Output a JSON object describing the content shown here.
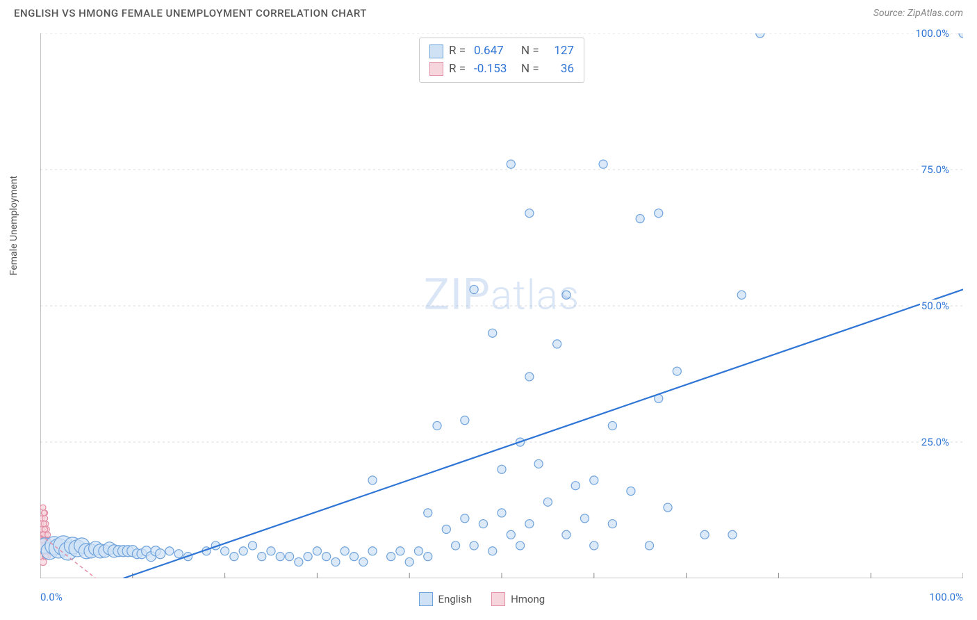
{
  "title": "ENGLISH VS HMONG FEMALE UNEMPLOYMENT CORRELATION CHART",
  "source": "Source: ZipAtlas.com",
  "ylabel": "Female Unemployment",
  "watermark_a": "ZIP",
  "watermark_b": "atlas",
  "chart": {
    "type": "scatter",
    "xlim": [
      0,
      100
    ],
    "ylim": [
      0,
      100
    ],
    "x_ticks": [
      0,
      10,
      20,
      30,
      40,
      50,
      60,
      70,
      80,
      90,
      100
    ],
    "y_ticks": [
      25,
      50,
      75,
      100
    ],
    "x_tick_labels": {
      "0": "0.0%",
      "100": "100.0%"
    },
    "y_tick_labels": {
      "25": "25.0%",
      "50": "50.0%",
      "75": "75.0%",
      "100": "100.0%"
    },
    "background_color": "#ffffff",
    "grid_color": "#d9d9d9",
    "grid_dash": "3,4",
    "axis_color": "#888888",
    "series": [
      {
        "name": "English",
        "marker_fill": "#cfe1f5",
        "marker_stroke": "#6fa3db",
        "marker_stroke_width": 1.2,
        "marker_base_r": 6,
        "trend_color": "#2e75d6",
        "trend_width": 2.2,
        "trend": {
          "x1": 9,
          "y1": 0,
          "x2": 100,
          "y2": 53
        },
        "stats": {
          "R": "0.647",
          "N": "127"
        },
        "points": [
          {
            "x": 0.5,
            "y": 6,
            "r": 11
          },
          {
            "x": 1,
            "y": 5,
            "r": 12
          },
          {
            "x": 1.5,
            "y": 6,
            "r": 13
          },
          {
            "x": 2,
            "y": 5.5,
            "r": 14
          },
          {
            "x": 2.5,
            "y": 6,
            "r": 14
          },
          {
            "x": 3,
            "y": 5,
            "r": 13
          },
          {
            "x": 3.5,
            "y": 6,
            "r": 12
          },
          {
            "x": 4,
            "y": 5.5,
            "r": 12
          },
          {
            "x": 4.5,
            "y": 6,
            "r": 11
          },
          {
            "x": 5,
            "y": 5,
            "r": 11
          },
          {
            "x": 5.5,
            "y": 5,
            "r": 10
          },
          {
            "x": 6,
            "y": 5.5,
            "r": 10
          },
          {
            "x": 6.5,
            "y": 5,
            "r": 10
          },
          {
            "x": 7,
            "y": 5,
            "r": 9
          },
          {
            "x": 7.5,
            "y": 5.5,
            "r": 9
          },
          {
            "x": 8,
            "y": 5,
            "r": 9
          },
          {
            "x": 8.5,
            "y": 5,
            "r": 8
          },
          {
            "x": 9,
            "y": 5,
            "r": 8
          },
          {
            "x": 9.5,
            "y": 5,
            "r": 8
          },
          {
            "x": 10,
            "y": 5,
            "r": 8
          },
          {
            "x": 10.5,
            "y": 4.5,
            "r": 7
          },
          {
            "x": 11,
            "y": 4.5,
            "r": 7
          },
          {
            "x": 11.5,
            "y": 5,
            "r": 7
          },
          {
            "x": 12,
            "y": 4,
            "r": 7
          },
          {
            "x": 12.5,
            "y": 5,
            "r": 7
          },
          {
            "x": 13,
            "y": 4.5,
            "r": 7
          },
          {
            "x": 14,
            "y": 5,
            "r": 6
          },
          {
            "x": 15,
            "y": 4.5,
            "r": 6
          },
          {
            "x": 16,
            "y": 4,
            "r": 6
          },
          {
            "x": 18,
            "y": 5,
            "r": 6
          },
          {
            "x": 19,
            "y": 6,
            "r": 6
          },
          {
            "x": 20,
            "y": 5,
            "r": 6
          },
          {
            "x": 21,
            "y": 4,
            "r": 6
          },
          {
            "x": 22,
            "y": 5,
            "r": 6
          },
          {
            "x": 23,
            "y": 6,
            "r": 6
          },
          {
            "x": 24,
            "y": 4,
            "r": 6
          },
          {
            "x": 25,
            "y": 5,
            "r": 6
          },
          {
            "x": 26,
            "y": 4,
            "r": 6
          },
          {
            "x": 27,
            "y": 4,
            "r": 6
          },
          {
            "x": 28,
            "y": 3,
            "r": 6
          },
          {
            "x": 29,
            "y": 4,
            "r": 6
          },
          {
            "x": 30,
            "y": 5,
            "r": 6
          },
          {
            "x": 31,
            "y": 4,
            "r": 6
          },
          {
            "x": 32,
            "y": 3,
            "r": 6
          },
          {
            "x": 33,
            "y": 5,
            "r": 6
          },
          {
            "x": 34,
            "y": 4,
            "r": 6
          },
          {
            "x": 35,
            "y": 3,
            "r": 6
          },
          {
            "x": 36,
            "y": 5,
            "r": 6
          },
          {
            "x": 36,
            "y": 18,
            "r": 6
          },
          {
            "x": 38,
            "y": 4,
            "r": 6
          },
          {
            "x": 39,
            "y": 5,
            "r": 6
          },
          {
            "x": 40,
            "y": 3,
            "r": 6
          },
          {
            "x": 41,
            "y": 5,
            "r": 6
          },
          {
            "x": 42,
            "y": 12,
            "r": 6
          },
          {
            "x": 42,
            "y": 4,
            "r": 6
          },
          {
            "x": 43,
            "y": 28,
            "r": 6
          },
          {
            "x": 44,
            "y": 9,
            "r": 6
          },
          {
            "x": 45,
            "y": 6,
            "r": 6
          },
          {
            "x": 46,
            "y": 11,
            "r": 6
          },
          {
            "x": 46,
            "y": 29,
            "r": 6
          },
          {
            "x": 47,
            "y": 6,
            "r": 6
          },
          {
            "x": 47,
            "y": 53,
            "r": 6
          },
          {
            "x": 48,
            "y": 10,
            "r": 6
          },
          {
            "x": 49,
            "y": 5,
            "r": 6
          },
          {
            "x": 49,
            "y": 45,
            "r": 6
          },
          {
            "x": 50,
            "y": 12,
            "r": 6
          },
          {
            "x": 50,
            "y": 20,
            "r": 6
          },
          {
            "x": 51,
            "y": 8,
            "r": 6
          },
          {
            "x": 51,
            "y": 76,
            "r": 6
          },
          {
            "x": 52,
            "y": 6,
            "r": 6
          },
          {
            "x": 52,
            "y": 25,
            "r": 6
          },
          {
            "x": 53,
            "y": 10,
            "r": 6
          },
          {
            "x": 53,
            "y": 37,
            "r": 6
          },
          {
            "x": 53,
            "y": 67,
            "r": 6
          },
          {
            "x": 54,
            "y": 21,
            "r": 6
          },
          {
            "x": 55,
            "y": 14,
            "r": 6
          },
          {
            "x": 56,
            "y": 43,
            "r": 6
          },
          {
            "x": 57,
            "y": 8,
            "r": 6
          },
          {
            "x": 57,
            "y": 52,
            "r": 6
          },
          {
            "x": 58,
            "y": 17,
            "r": 6
          },
          {
            "x": 59,
            "y": 11,
            "r": 6
          },
          {
            "x": 60,
            "y": 6,
            "r": 6
          },
          {
            "x": 60,
            "y": 18,
            "r": 6
          },
          {
            "x": 61,
            "y": 76,
            "r": 6
          },
          {
            "x": 62,
            "y": 10,
            "r": 6
          },
          {
            "x": 62,
            "y": 28,
            "r": 6
          },
          {
            "x": 64,
            "y": 16,
            "r": 6
          },
          {
            "x": 65,
            "y": 66,
            "r": 6
          },
          {
            "x": 66,
            "y": 6,
            "r": 6
          },
          {
            "x": 67,
            "y": 33,
            "r": 6
          },
          {
            "x": 67,
            "y": 67,
            "r": 6
          },
          {
            "x": 68,
            "y": 13,
            "r": 6
          },
          {
            "x": 69,
            "y": 38,
            "r": 6
          },
          {
            "x": 72,
            "y": 8,
            "r": 6
          },
          {
            "x": 75,
            "y": 8,
            "r": 6
          },
          {
            "x": 76,
            "y": 52,
            "r": 6
          },
          {
            "x": 78,
            "y": 100,
            "r": 6
          },
          {
            "x": 100,
            "y": 100,
            "r": 6
          }
        ]
      },
      {
        "name": "Hmong",
        "marker_fill": "#f7d5dd",
        "marker_stroke": "#e38fa6",
        "marker_stroke_width": 1.2,
        "marker_base_r": 5,
        "trend_color": "#e38fa6",
        "trend_width": 1.5,
        "trend_dash": "5,4",
        "trend": {
          "x1": 0,
          "y1": 8,
          "x2": 6,
          "y2": 0
        },
        "stats": {
          "R": "-0.153",
          "N": "36"
        },
        "points": [
          {
            "x": 0.2,
            "y": 4,
            "r": 5
          },
          {
            "x": 0.3,
            "y": 6,
            "r": 6
          },
          {
            "x": 0.4,
            "y": 8,
            "r": 5
          },
          {
            "x": 0.3,
            "y": 10,
            "r": 5
          },
          {
            "x": 0.5,
            "y": 12,
            "r": 4
          },
          {
            "x": 0.2,
            "y": 7,
            "r": 5
          },
          {
            "x": 0.6,
            "y": 5,
            "r": 5
          },
          {
            "x": 0.4,
            "y": 9,
            "r": 4
          },
          {
            "x": 0.3,
            "y": 3,
            "r": 5
          },
          {
            "x": 0.5,
            "y": 7,
            "r": 5
          },
          {
            "x": 0.8,
            "y": 4,
            "r": 4
          },
          {
            "x": 0.2,
            "y": 11,
            "r": 4
          },
          {
            "x": 0.6,
            "y": 8,
            "r": 4
          },
          {
            "x": 0.4,
            "y": 5,
            "r": 5
          },
          {
            "x": 0.9,
            "y": 6,
            "r": 4
          },
          {
            "x": 0.3,
            "y": 13,
            "r": 4
          },
          {
            "x": 0.5,
            "y": 4,
            "r": 4
          },
          {
            "x": 0.7,
            "y": 9,
            "r": 4
          },
          {
            "x": 0.2,
            "y": 5,
            "r": 4
          },
          {
            "x": 0.8,
            "y": 7,
            "r": 4
          },
          {
            "x": 0.4,
            "y": 6,
            "r": 4
          },
          {
            "x": 0.6,
            "y": 10,
            "r": 4
          },
          {
            "x": 0.3,
            "y": 8,
            "r": 4
          },
          {
            "x": 0.5,
            "y": 11,
            "r": 4
          },
          {
            "x": 0.9,
            "y": 5,
            "r": 4
          },
          {
            "x": 0.2,
            "y": 9,
            "r": 4
          },
          {
            "x": 0.7,
            "y": 6,
            "r": 4
          },
          {
            "x": 0.4,
            "y": 12,
            "r": 4
          },
          {
            "x": 0.6,
            "y": 4,
            "r": 4
          },
          {
            "x": 0.8,
            "y": 8,
            "r": 4
          },
          {
            "x": 0.3,
            "y": 7,
            "r": 4
          },
          {
            "x": 0.5,
            "y": 9,
            "r": 4
          },
          {
            "x": 1.0,
            "y": 5,
            "r": 4
          },
          {
            "x": 0.4,
            "y": 10,
            "r": 4
          },
          {
            "x": 0.7,
            "y": 7,
            "r": 4
          },
          {
            "x": 0.2,
            "y": 6,
            "r": 4
          }
        ]
      }
    ]
  },
  "legend": {
    "items": [
      {
        "label": "English",
        "fill": "#cfe1f5",
        "stroke": "#6fa3db"
      },
      {
        "label": "Hmong",
        "fill": "#f7d5dd",
        "stroke": "#e38fa6"
      }
    ]
  }
}
